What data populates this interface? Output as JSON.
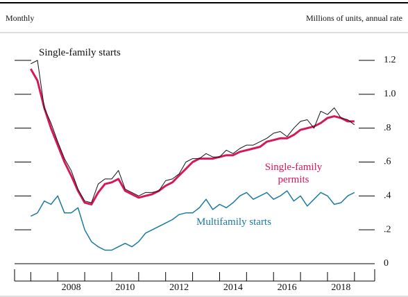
{
  "chart_data": {
    "type": "line",
    "subtitle": "Monthly",
    "y_label": "Millions of units, annual rate",
    "x": [
      2007.0,
      2007.25,
      2007.5,
      2007.75,
      2008.0,
      2008.25,
      2008.5,
      2008.75,
      2009.0,
      2009.25,
      2009.5,
      2009.75,
      2010.0,
      2010.25,
      2010.5,
      2010.75,
      2011.0,
      2011.25,
      2011.5,
      2011.75,
      2012.0,
      2012.25,
      2012.5,
      2012.75,
      2013.0,
      2013.25,
      2013.5,
      2013.75,
      2014.0,
      2014.25,
      2014.5,
      2014.75,
      2015.0,
      2015.25,
      2015.5,
      2015.75,
      2016.0,
      2016.25,
      2016.5,
      2016.75,
      2017.0,
      2017.25,
      2017.5,
      2017.75,
      2018.0,
      2018.25,
      2018.5,
      2018.75,
      2019.0
    ],
    "series": [
      {
        "name": "Single-family starts",
        "color": "#111111",
        "width": 1,
        "values": [
          1.18,
          1.2,
          0.92,
          0.83,
          0.72,
          0.62,
          0.55,
          0.44,
          0.37,
          0.36,
          0.47,
          0.5,
          0.5,
          0.55,
          0.44,
          0.42,
          0.4,
          0.42,
          0.42,
          0.43,
          0.49,
          0.5,
          0.53,
          0.6,
          0.62,
          0.62,
          0.65,
          0.63,
          0.63,
          0.67,
          0.65,
          0.68,
          0.7,
          0.7,
          0.72,
          0.74,
          0.77,
          0.78,
          0.75,
          0.8,
          0.84,
          0.85,
          0.8,
          0.9,
          0.88,
          0.92,
          0.86,
          0.85,
          0.82
        ]
      },
      {
        "name": "Single-family permits",
        "color": "#d6185a",
        "width": 3,
        "values": [
          1.15,
          1.08,
          0.92,
          0.8,
          0.7,
          0.6,
          0.52,
          0.43,
          0.36,
          0.35,
          0.42,
          0.47,
          0.48,
          0.5,
          0.43,
          0.41,
          0.39,
          0.4,
          0.41,
          0.43,
          0.46,
          0.48,
          0.52,
          0.56,
          0.6,
          0.62,
          0.62,
          0.62,
          0.63,
          0.64,
          0.64,
          0.66,
          0.67,
          0.68,
          0.69,
          0.72,
          0.73,
          0.74,
          0.74,
          0.76,
          0.79,
          0.8,
          0.81,
          0.83,
          0.86,
          0.87,
          0.86,
          0.84,
          0.84
        ]
      },
      {
        "name": "Multifamily starts",
        "color": "#1a7aa0",
        "width": 1.5,
        "values": [
          0.28,
          0.3,
          0.37,
          0.35,
          0.4,
          0.3,
          0.3,
          0.33,
          0.2,
          0.13,
          0.1,
          0.08,
          0.08,
          0.1,
          0.12,
          0.1,
          0.13,
          0.18,
          0.2,
          0.22,
          0.24,
          0.26,
          0.29,
          0.3,
          0.3,
          0.33,
          0.38,
          0.32,
          0.35,
          0.33,
          0.36,
          0.4,
          0.42,
          0.38,
          0.4,
          0.42,
          0.38,
          0.4,
          0.43,
          0.37,
          0.4,
          0.34,
          0.38,
          0.42,
          0.4,
          0.35,
          0.36,
          0.4,
          0.42
        ]
      }
    ],
    "xlim": [
      2006.4,
      2019.75
    ],
    "xticks": [
      2007,
      2008,
      2009,
      2010,
      2011,
      2012,
      2013,
      2014,
      2015,
      2016,
      2017,
      2018,
      2019
    ],
    "xlabels": [
      {
        "value": 2008.5,
        "label": "2008"
      },
      {
        "value": 2010.5,
        "label": "2010"
      },
      {
        "value": 2012.5,
        "label": "2012"
      },
      {
        "value": 2014.5,
        "label": "2014"
      },
      {
        "value": 2016.5,
        "label": "2016"
      },
      {
        "value": 2018.5,
        "label": "2018"
      }
    ],
    "ylim": [
      0,
      1.2
    ],
    "yticks": [
      0,
      {
        "value": 0.2,
        "label": ".2"
      },
      {
        "value": 0.4,
        "label": ".4"
      },
      {
        "value": 0.6,
        "label": ".6"
      },
      {
        "value": 0.8,
        "label": ".8"
      },
      {
        "value": 1,
        "label": "1.0"
      },
      1.2
    ]
  }
}
